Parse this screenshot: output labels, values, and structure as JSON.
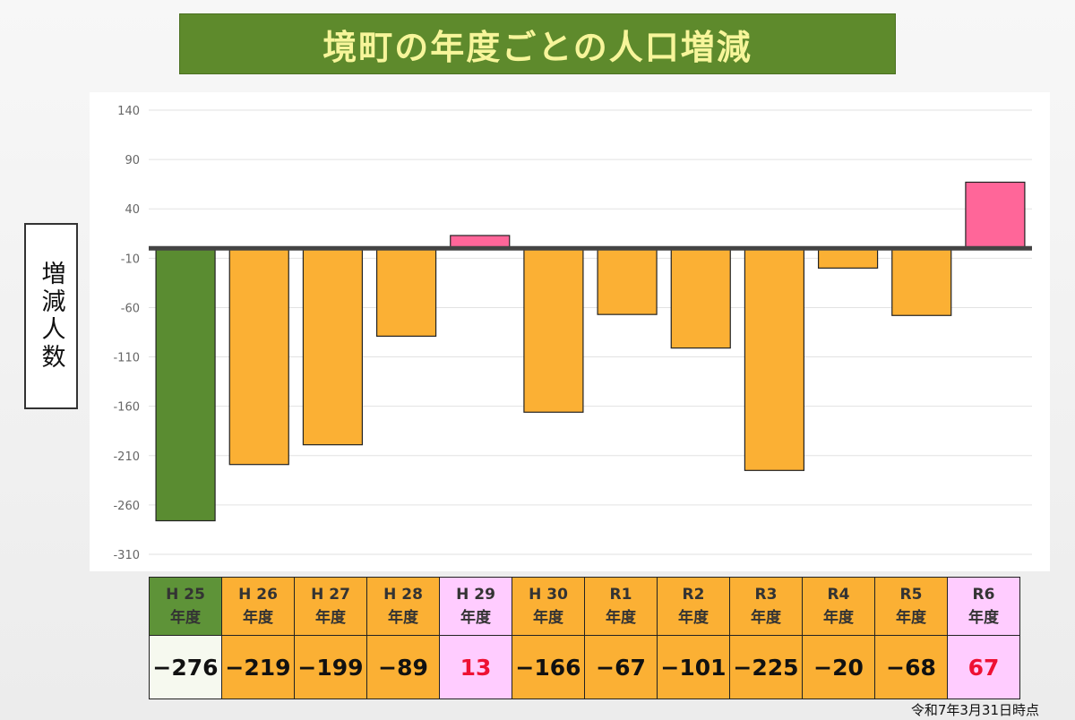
{
  "title": "境町の年度ごとの人口増減",
  "y_axis_label": "増減人数",
  "footnote": "令和7年3月31日時点",
  "colors": {
    "first_bar": "#5a8c31",
    "negative_bar": "#fbb034",
    "positive_bar": "#ff6699",
    "header_first": "#5e9338",
    "header_negative": "#fbb034",
    "header_positive": "#ffccff",
    "value_cell_first": "#f6f9ef",
    "positive_value_text": "#ee1133"
  },
  "chart_data": {
    "type": "bar",
    "title": "境町の年度ごとの人口増減",
    "ylabel": "増減人数",
    "xlabel": "",
    "ylim": [
      -310,
      140
    ],
    "yticks": [
      140,
      90,
      40,
      -10,
      -60,
      -110,
      -160,
      -210,
      -260,
      -310
    ],
    "grid": true,
    "categories": [
      {
        "era": "H 25",
        "unit": "年度"
      },
      {
        "era": "H 26",
        "unit": "年度"
      },
      {
        "era": "H 27",
        "unit": "年度"
      },
      {
        "era": "H 28",
        "unit": "年度"
      },
      {
        "era": "H 29",
        "unit": "年度"
      },
      {
        "era": "H 30",
        "unit": "年度"
      },
      {
        "era": "R1",
        "unit": "年度"
      },
      {
        "era": "R2",
        "unit": "年度"
      },
      {
        "era": "R3",
        "unit": "年度"
      },
      {
        "era": "R4",
        "unit": "年度"
      },
      {
        "era": "R5",
        "unit": "年度"
      },
      {
        "era": "R6",
        "unit": "年度"
      }
    ],
    "values": [
      -276,
      -219,
      -199,
      -89,
      13,
      -166,
      -67,
      -101,
      -225,
      -20,
      -68,
      67
    ],
    "value_labels": [
      "−276",
      "−219",
      "−199",
      "−89",
      "13",
      "−166",
      "−67",
      "−101",
      "−225",
      "−20",
      "−68",
      "67"
    ]
  }
}
